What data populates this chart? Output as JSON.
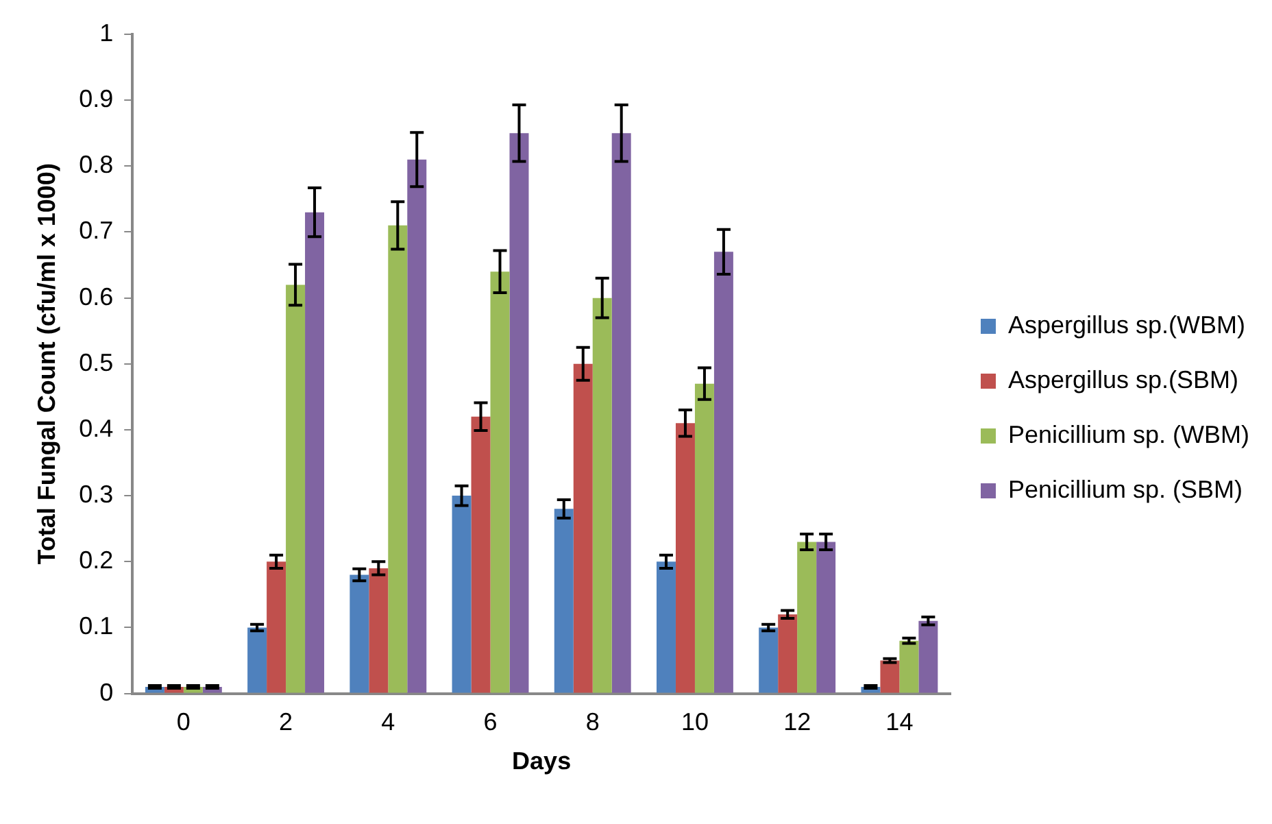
{
  "chart_data": {
    "type": "bar",
    "xlabel": "Days",
    "ylabel": "Total Fungal Count (cfu/ml x 1000)",
    "categories": [
      "0",
      "2",
      "4",
      "6",
      "8",
      "10",
      "12",
      "14"
    ],
    "series": [
      {
        "name": "Aspergillus sp.(WBM)",
        "color": "#4f81bd",
        "values": [
          0.01,
          0.1,
          0.18,
          0.3,
          0.28,
          0.2,
          0.1,
          0.01
        ],
        "errors": [
          0.002,
          0.005,
          0.009,
          0.015,
          0.014,
          0.01,
          0.005,
          0.002
        ]
      },
      {
        "name": "Aspergillus sp.(SBM)",
        "color": "#c0504d",
        "values": [
          0.01,
          0.2,
          0.19,
          0.42,
          0.5,
          0.41,
          0.12,
          0.05
        ],
        "errors": [
          0.002,
          0.01,
          0.01,
          0.021,
          0.025,
          0.02,
          0.006,
          0.003
        ]
      },
      {
        "name": "Penicillium sp. (WBM)",
        "color": "#9bbb59",
        "values": [
          0.01,
          0.62,
          0.71,
          0.64,
          0.6,
          0.47,
          0.23,
          0.08
        ],
        "errors": [
          0.002,
          0.031,
          0.036,
          0.032,
          0.03,
          0.024,
          0.012,
          0.004
        ]
      },
      {
        "name": "Penicillium sp. (SBM)",
        "color": "#8064a2",
        "values": [
          0.01,
          0.73,
          0.81,
          0.85,
          0.85,
          0.67,
          0.23,
          0.11
        ],
        "errors": [
          0.002,
          0.037,
          0.041,
          0.043,
          0.043,
          0.034,
          0.012,
          0.006
        ]
      }
    ],
    "ylim": [
      0,
      1
    ],
    "yticks": [
      0,
      0.1,
      0.2,
      0.3,
      0.4,
      0.5,
      0.6,
      0.7,
      0.8,
      0.9,
      1
    ],
    "grid": false,
    "legend": "right"
  }
}
